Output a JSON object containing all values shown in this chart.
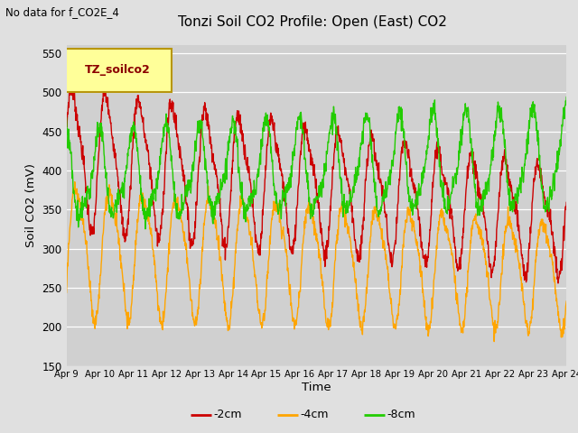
{
  "title": "Tonzi Soil CO2 Profile: Open (East) CO2",
  "subtitle": "No data for f_CO2E_4",
  "ylabel": "Soil CO2 (mV)",
  "xlabel": "Time",
  "legend_label": "TZ_soilco2",
  "series_labels": [
    "-2cm",
    "-4cm",
    "-8cm"
  ],
  "series_colors": [
    "#cc0000",
    "#ffa500",
    "#22cc00"
  ],
  "ylim": [
    150,
    560
  ],
  "yticks": [
    150,
    200,
    250,
    300,
    350,
    400,
    450,
    500,
    550
  ],
  "n_days": 15,
  "xtick_labels": [
    "Apr 9",
    "Apr 10",
    "Apr 11",
    "Apr 12",
    "Apr 13",
    "Apr 14",
    "Apr 15",
    "Apr 16",
    "Apr 17",
    "Apr 18",
    "Apr 19",
    "Apr 20",
    "Apr 21",
    "Apr 22",
    "Apr 23",
    "Apr 24"
  ],
  "bg_color": "#e0e0e0",
  "plot_bg_color": "#d0d0d0",
  "legend_box_facecolor": "#ffff99",
  "legend_box_edgecolor": "#b8960c",
  "legend_box_text_color": "#8b0000"
}
